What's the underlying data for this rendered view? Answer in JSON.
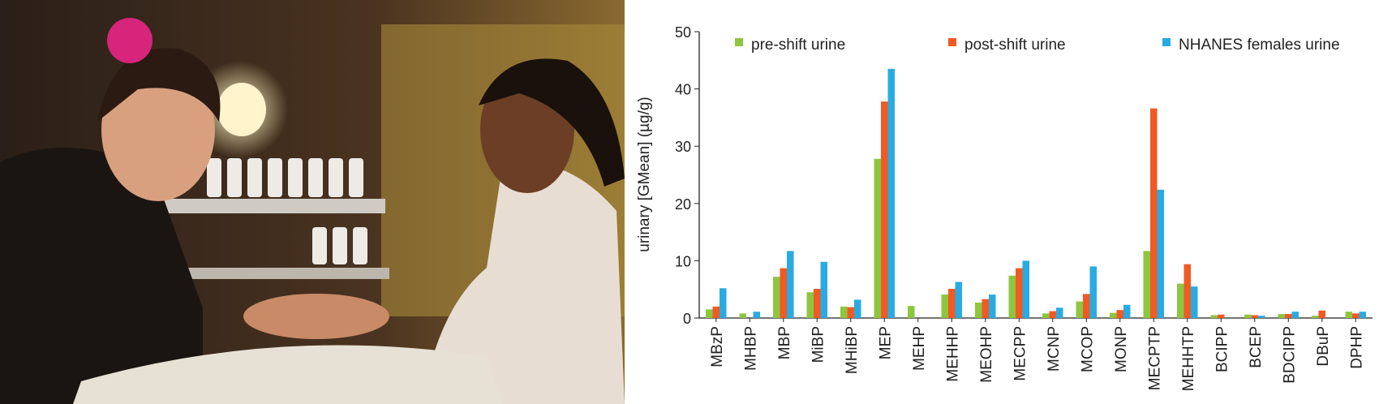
{
  "chart_data": {
    "type": "bar",
    "y_label": "urinary [GMean] (µg/g)",
    "categories": [
      "MBzP",
      "MHBP",
      "MBP",
      "MiBP",
      "MHiBP",
      "MEP",
      "MEHP",
      "MEHHP",
      "MEOHP",
      "MECPP",
      "MCNP",
      "MCOP",
      "MONP",
      "MECPTP",
      "MEHHTP",
      "BCIPP",
      "BCEP",
      "BDCIPP",
      "DBuP",
      "DPHP"
    ],
    "series": [
      {
        "name": "pre-shift urine",
        "color": "#8dc63f",
        "values": [
          1.5,
          0.8,
          7.2,
          4.5,
          2.0,
          27.8,
          2.1,
          4.1,
          2.7,
          7.4,
          0.8,
          2.9,
          0.9,
          11.7,
          6.0,
          0.5,
          0.6,
          0.7,
          0.4,
          1.1
        ]
      },
      {
        "name": "post-shift urine",
        "color": "#f15a24",
        "values": [
          2.0,
          null,
          8.7,
          5.1,
          1.9,
          37.8,
          null,
          5.1,
          3.3,
          8.7,
          1.2,
          4.2,
          1.4,
          36.6,
          9.4,
          0.6,
          0.5,
          0.7,
          1.3,
          0.8
        ]
      },
      {
        "name": "NHANES females urine",
        "color": "#29abe2",
        "values": [
          5.2,
          1.1,
          11.7,
          9.8,
          3.2,
          43.5,
          null,
          6.3,
          4.1,
          10.0,
          1.8,
          9.0,
          2.3,
          22.4,
          5.5,
          null,
          0.4,
          1.1,
          null,
          1.1
        ]
      }
    ],
    "ylim": [
      0,
      50
    ],
    "yticks": [
      0,
      10,
      20,
      30,
      40,
      50
    ],
    "grid": false,
    "legend": "top"
  }
}
